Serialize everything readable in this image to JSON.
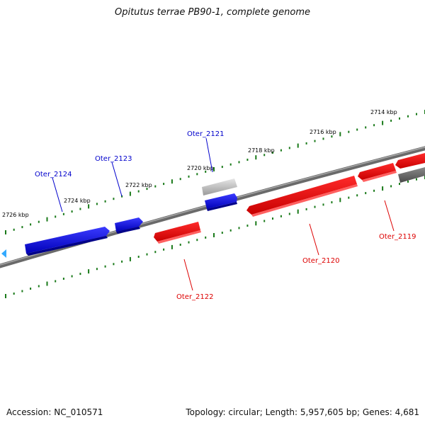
{
  "title": "Opitutus terrae PB90-1, complete genome",
  "footer": {
    "accession": "Accession: NC_010571",
    "topology": "Topology: circular; Length: 5,957,605 bp; Genes: 4,681"
  },
  "scale_labels": [
    "2714 kbp",
    "2716 kbp",
    "2718 kbp",
    "2720 kbp",
    "2722 kbp",
    "2724 kbp",
    "2726 kbp"
  ],
  "genes": [
    {
      "name": "Oter_2124",
      "strand": "reverse"
    },
    {
      "name": "Oter_2123",
      "strand": "reverse"
    },
    {
      "name": "Oter_2122",
      "strand": "forward"
    },
    {
      "name": "Oter_2121",
      "strand": "reverse"
    },
    {
      "name": "Oter_2120",
      "strand": "forward"
    },
    {
      "name": "Oter_2119",
      "strand": "forward"
    }
  ],
  "colors": {
    "reverse": "#0000e6",
    "forward": "#e60000",
    "pseudo": "#b8b8b8",
    "backbone": "#808080",
    "ticks": "#1a7a1a",
    "marker": "#33aaff"
  }
}
